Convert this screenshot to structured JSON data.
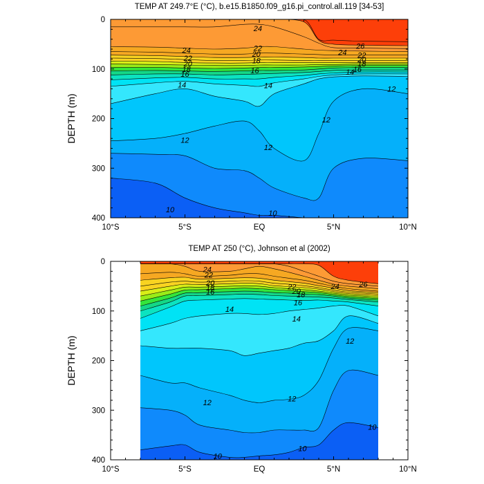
{
  "chart_data": [
    {
      "type": "contour",
      "title": "TEMP AT 249.7°E (°C), b.e15.B1850.f09_g16.pi_control.all.119 [34-53]",
      "ylabel": "DEPTH (m)",
      "xlabel": "",
      "x_ticks": [
        {
          "value": -10,
          "label": "10°S"
        },
        {
          "value": -5,
          "label": "5°S"
        },
        {
          "value": 0,
          "label": "EQ"
        },
        {
          "value": 5,
          "label": "5°N"
        },
        {
          "value": 10,
          "label": "10°N"
        }
      ],
      "y_ticks": [
        0,
        100,
        200,
        300,
        400
      ],
      "xlim": [
        -10,
        10
      ],
      "ylim": [
        400,
        0
      ],
      "data_extent": [
        -10,
        10
      ],
      "control_x": [
        -10,
        -7,
        -5,
        -3,
        -1,
        0,
        1,
        3,
        4,
        5,
        7,
        10
      ],
      "isotherms": [
        {
          "value": 27,
          "depths": [
            0,
            0,
            0,
            0,
            0,
            0,
            0,
            0,
            40,
            42,
            44,
            45
          ]
        },
        {
          "value": 26,
          "depths": [
            0,
            0,
            0,
            0,
            0,
            0,
            0,
            5,
            42,
            50,
            52,
            53
          ]
        },
        {
          "value": 25,
          "depths": [
            15,
            15,
            15,
            15,
            10,
            10,
            15,
            35,
            48,
            57,
            58,
            59
          ]
        },
        {
          "value": 24,
          "depths": [
            55,
            56,
            58,
            60,
            58,
            55,
            55,
            60,
            62,
            63,
            64,
            65
          ]
        },
        {
          "value": 23,
          "depths": [
            65,
            66,
            68,
            70,
            70,
            68,
            68,
            70,
            71,
            72,
            72,
            72
          ]
        },
        {
          "value": 22,
          "depths": [
            72,
            73,
            75,
            77,
            77,
            76,
            76,
            77,
            78,
            78,
            78,
            78
          ]
        },
        {
          "value": 21,
          "depths": [
            78,
            79,
            81,
            83,
            83,
            82,
            82,
            83,
            83,
            83,
            83,
            83
          ]
        },
        {
          "value": 20,
          "depths": [
            84,
            85,
            87,
            88,
            88,
            87,
            87,
            87,
            87,
            87,
            87,
            87
          ]
        },
        {
          "value": 19,
          "depths": [
            90,
            91,
            92,
            93,
            93,
            92,
            92,
            92,
            91,
            91,
            90,
            90
          ]
        },
        {
          "value": 18,
          "depths": [
            97,
            97,
            98,
            99,
            98,
            97,
            97,
            96,
            95,
            94,
            93,
            93
          ]
        },
        {
          "value": 17,
          "depths": [
            104,
            103,
            104,
            105,
            104,
            103,
            103,
            102,
            100,
            98,
            97,
            97
          ]
        },
        {
          "value": 16,
          "depths": [
            112,
            110,
            110,
            112,
            111,
            110,
            109,
            107,
            105,
            103,
            102,
            102
          ]
        },
        {
          "value": 15,
          "depths": [
            122,
            118,
            117,
            120,
            120,
            120,
            117,
            113,
            110,
            108,
            106,
            106
          ]
        },
        {
          "value": 14,
          "depths": [
            135,
            128,
            125,
            130,
            133,
            135,
            128,
            120,
            115,
            112,
            110,
            110
          ]
        },
        {
          "value": 13,
          "depths": [
            170,
            150,
            140,
            155,
            165,
            175,
            150,
            130,
            120,
            116,
            114,
            115
          ]
        },
        {
          "value": 12,
          "depths": [
            245,
            240,
            230,
            215,
            205,
            225,
            260,
            285,
            230,
            165,
            140,
            150
          ]
        },
        {
          "value": 11,
          "depths": [
            270,
            272,
            275,
            300,
            305,
            320,
            340,
            360,
            360,
            300,
            280,
            285
          ]
        },
        {
          "value": 10,
          "depths": [
            320,
            330,
            360,
            380,
            390,
            395,
            395,
            400,
            400,
            400,
            400,
            400
          ]
        }
      ],
      "contour_labels": [
        {
          "text": "24",
          "x": -0.1,
          "depth": 18
        },
        {
          "text": "24",
          "x": -4.9,
          "depth": 62
        },
        {
          "text": "22",
          "x": -4.8,
          "depth": 78
        },
        {
          "text": "20",
          "x": -4.8,
          "depth": 89
        },
        {
          "text": "18",
          "x": -4.9,
          "depth": 100
        },
        {
          "text": "16",
          "x": -5.0,
          "depth": 110
        },
        {
          "text": "14",
          "x": -5.2,
          "depth": 132
        },
        {
          "text": "22",
          "x": -0.1,
          "depth": 58
        },
        {
          "text": "20",
          "x": -0.2,
          "depth": 70
        },
        {
          "text": "18",
          "x": -0.2,
          "depth": 83
        },
        {
          "text": "16",
          "x": -0.3,
          "depth": 103
        },
        {
          "text": "14",
          "x": 0.6,
          "depth": 133
        },
        {
          "text": "26",
          "x": 6.8,
          "depth": 54
        },
        {
          "text": "24",
          "x": 5.6,
          "depth": 66
        },
        {
          "text": "22",
          "x": 6.9,
          "depth": 72
        },
        {
          "text": "20",
          "x": 6.9,
          "depth": 81
        },
        {
          "text": "18",
          "x": 6.9,
          "depth": 89
        },
        {
          "text": "16",
          "x": 6.6,
          "depth": 100
        },
        {
          "text": "14",
          "x": 6.1,
          "depth": 106
        },
        {
          "text": "12",
          "x": 8.9,
          "depth": 140
        },
        {
          "text": "12",
          "x": 4.5,
          "depth": 202
        },
        {
          "text": "12",
          "x": -5.0,
          "depth": 243
        },
        {
          "text": "12",
          "x": 0.6,
          "depth": 258
        },
        {
          "text": "10",
          "x": -6.0,
          "depth": 383
        },
        {
          "text": "10",
          "x": 0.9,
          "depth": 390
        }
      ]
    },
    {
      "type": "contour",
      "title": "TEMP AT 250 (°C), Johnson et al (2002)",
      "ylabel": "DEPTH (m)",
      "xlabel": "",
      "x_ticks": [
        {
          "value": -10,
          "label": "10°S"
        },
        {
          "value": -5,
          "label": "5°S"
        },
        {
          "value": 0,
          "label": "EQ"
        },
        {
          "value": 5,
          "label": "5°N"
        },
        {
          "value": 10,
          "label": "10°N"
        }
      ],
      "y_ticks": [
        0,
        100,
        200,
        300,
        400
      ],
      "xlim": [
        -10,
        10
      ],
      "ylim": [
        400,
        0
      ],
      "data_extent": [
        -8,
        8
      ],
      "control_x": [
        -8,
        -6,
        -5,
        -4,
        -2,
        -1,
        0,
        1,
        2,
        3,
        4,
        5,
        6,
        8
      ],
      "isotherms": [
        {
          "value": 27,
          "depths": [
            0,
            0,
            0,
            0,
            0,
            0,
            0,
            0,
            0,
            0,
            0,
            0,
            0,
            0
          ]
        },
        {
          "value": 26,
          "depths": [
            5,
            5,
            5,
            5,
            5,
            5,
            5,
            5,
            5,
            5,
            8,
            30,
            38,
            45
          ]
        },
        {
          "value": 25,
          "depths": [
            5,
            5,
            5,
            5,
            5,
            5,
            5,
            5,
            10,
            20,
            30,
            40,
            45,
            50
          ]
        },
        {
          "value": 24,
          "depths": [
            5,
            5,
            10,
            20,
            20,
            15,
            10,
            15,
            22,
            30,
            38,
            46,
            50,
            55
          ]
        },
        {
          "value": 23,
          "depths": [
            25,
            22,
            25,
            30,
            28,
            25,
            25,
            30,
            34,
            38,
            44,
            50,
            55,
            60
          ]
        },
        {
          "value": 22,
          "depths": [
            38,
            33,
            32,
            36,
            34,
            33,
            34,
            38,
            41,
            44,
            49,
            54,
            59,
            63
          ]
        },
        {
          "value": 21,
          "depths": [
            50,
            42,
            40,
            42,
            40,
            39,
            40,
            44,
            46,
            49,
            53,
            58,
            62,
            66
          ]
        },
        {
          "value": 20,
          "depths": [
            60,
            50,
            46,
            47,
            45,
            44,
            45,
            49,
            51,
            53,
            56,
            61,
            65,
            69
          ]
        },
        {
          "value": 19,
          "depths": [
            70,
            58,
            52,
            52,
            50,
            49,
            50,
            53,
            55,
            57,
            60,
            64,
            68,
            72
          ]
        },
        {
          "value": 18,
          "depths": [
            80,
            66,
            58,
            57,
            55,
            54,
            55,
            57,
            59,
            61,
            63,
            67,
            71,
            75
          ]
        },
        {
          "value": 17,
          "depths": [
            90,
            74,
            64,
            63,
            61,
            60,
            61,
            63,
            64,
            66,
            67,
            70,
            74,
            78
          ]
        },
        {
          "value": 16,
          "depths": [
            100,
            82,
            70,
            69,
            67,
            66,
            67,
            69,
            70,
            71,
            72,
            74,
            77,
            82
          ]
        },
        {
          "value": 15,
          "depths": [
            115,
            92,
            80,
            78,
            76,
            75,
            76,
            77,
            78,
            79,
            78,
            80,
            82,
            90
          ]
        },
        {
          "value": 14,
          "depths": [
            140,
            125,
            115,
            110,
            105,
            105,
            107,
            105,
            100,
            97,
            94,
            90,
            90,
            110
          ]
        },
        {
          "value": 13,
          "depths": [
            170,
            175,
            175,
            175,
            180,
            190,
            185,
            180,
            175,
            165,
            160,
            140,
            110,
            125
          ]
        },
        {
          "value": 12,
          "depths": [
            230,
            245,
            245,
            255,
            270,
            280,
            285,
            280,
            278,
            270,
            240,
            175,
            135,
            140
          ]
        },
        {
          "value": 11,
          "depths": [
            295,
            300,
            310,
            330,
            340,
            345,
            345,
            340,
            340,
            340,
            335,
            260,
            220,
            230
          ]
        },
        {
          "value": 10,
          "depths": [
            380,
            372,
            370,
            385,
            395,
            395,
            392,
            390,
            385,
            375,
            370,
            340,
            325,
            335
          ]
        }
      ],
      "contour_labels": [
        {
          "text": "24",
          "x": -3.5,
          "depth": 16
        },
        {
          "text": "22",
          "x": -3.4,
          "depth": 27
        },
        {
          "text": "20",
          "x": -3.3,
          "depth": 43
        },
        {
          "text": "18",
          "x": -3.3,
          "depth": 53
        },
        {
          "text": "16",
          "x": -3.3,
          "depth": 61
        },
        {
          "text": "14",
          "x": -2.0,
          "depth": 96
        },
        {
          "text": "22",
          "x": 2.2,
          "depth": 51
        },
        {
          "text": "20",
          "x": 2.5,
          "depth": 60
        },
        {
          "text": "18",
          "x": 2.8,
          "depth": 67
        },
        {
          "text": "16",
          "x": 2.6,
          "depth": 83
        },
        {
          "text": "14",
          "x": 2.5,
          "depth": 116
        },
        {
          "text": "24",
          "x": 5.1,
          "depth": 50
        },
        {
          "text": "26",
          "x": 7.0,
          "depth": 46
        },
        {
          "text": "12",
          "x": 6.1,
          "depth": 160
        },
        {
          "text": "12",
          "x": -3.5,
          "depth": 284
        },
        {
          "text": "12",
          "x": 2.2,
          "depth": 277
        },
        {
          "text": "10",
          "x": 7.6,
          "depth": 334
        },
        {
          "text": "10",
          "x": 2.9,
          "depth": 377
        },
        {
          "text": "10",
          "x": -2.8,
          "depth": 392
        }
      ]
    }
  ]
}
